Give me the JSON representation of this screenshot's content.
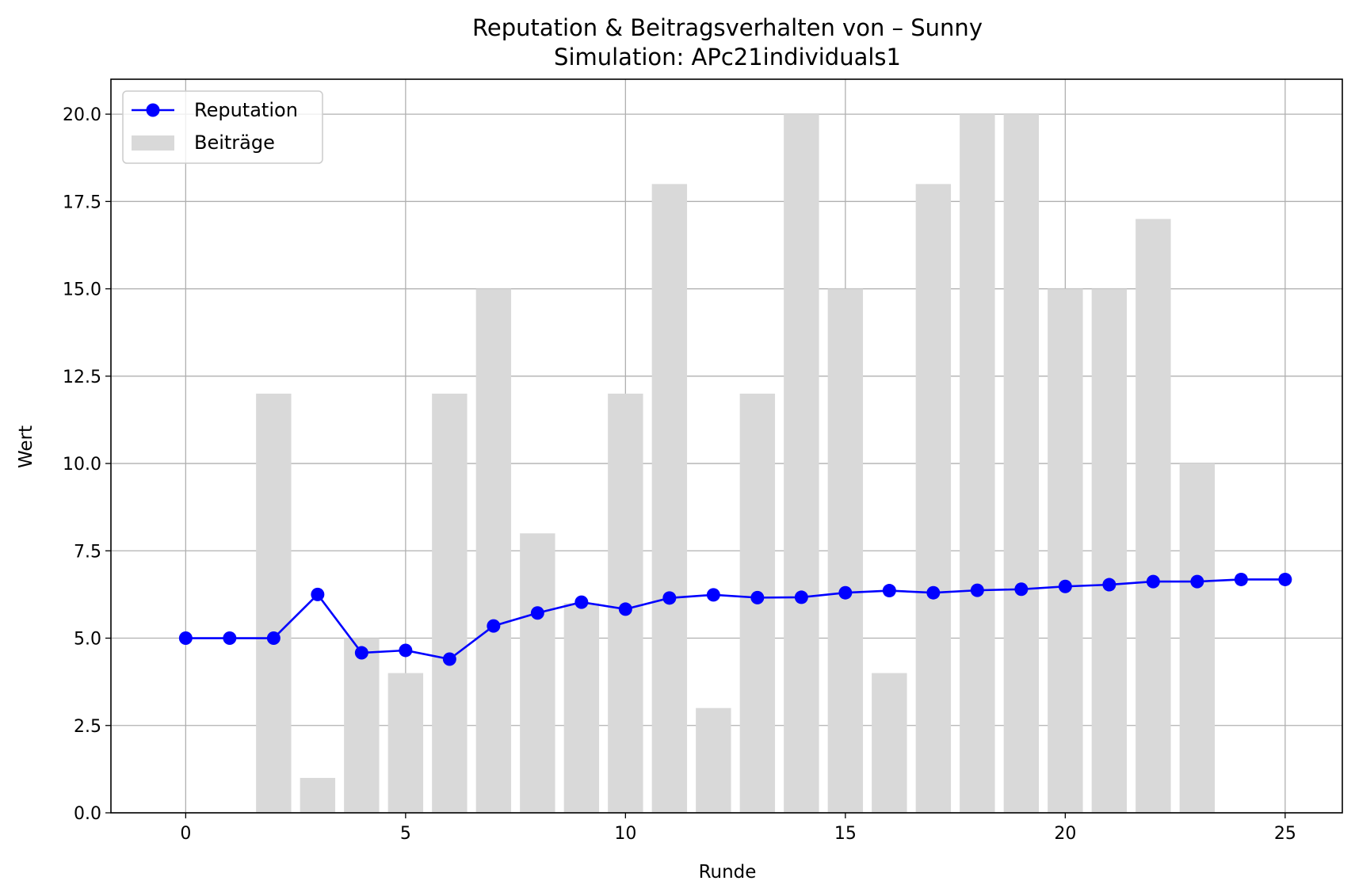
{
  "colors": {
    "reputation": "#0000ff",
    "contributions": "#d9d9d9",
    "grid": "#b0b0b0",
    "axes": "#000000",
    "legend_border": "#cccccc"
  },
  "chart_data": {
    "type": "bar",
    "title": "Reputation & Beitragsverhalten von – Sunny",
    "subtitle": "Simulation: APc21individuals1",
    "xlabel": "Runde",
    "ylabel": "Wert",
    "xlim": [
      -1.7,
      26.3
    ],
    "ylim": [
      0,
      21
    ],
    "xticks": [
      0,
      5,
      10,
      15,
      20,
      25
    ],
    "xtick_labels": [
      "0",
      "5",
      "10",
      "15",
      "20",
      "25"
    ],
    "yticks": [
      0,
      2.5,
      5,
      7.5,
      10,
      12.5,
      15,
      17.5,
      20
    ],
    "ytick_labels": [
      "0.0",
      "2.5",
      "5.0",
      "7.5",
      "10.0",
      "12.5",
      "15.0",
      "17.5",
      "20.0"
    ],
    "grid": true,
    "legend_position": "top-left",
    "series": [
      {
        "name": "Reputation",
        "type": "line",
        "marker": "circle",
        "x": [
          0,
          1,
          2,
          3,
          4,
          5,
          6,
          7,
          8,
          9,
          10,
          11,
          12,
          13,
          14,
          15,
          16,
          17,
          18,
          19,
          20,
          21,
          22,
          23,
          24,
          25
        ],
        "values": [
          5.0,
          5.0,
          5.0,
          6.25,
          4.58,
          4.65,
          4.4,
          5.35,
          5.72,
          6.03,
          5.83,
          6.15,
          6.24,
          6.16,
          6.17,
          6.3,
          6.36,
          6.3,
          6.37,
          6.4,
          6.48,
          6.53,
          6.62,
          6.62,
          6.68,
          6.68
        ]
      },
      {
        "name": "Beiträge",
        "type": "bar",
        "x": [
          2,
          3,
          4,
          5,
          6,
          7,
          8,
          9,
          10,
          11,
          12,
          13,
          14,
          15,
          16,
          17,
          18,
          19,
          20,
          21,
          22,
          23
        ],
        "values": [
          12,
          1,
          5,
          4,
          12,
          15,
          8,
          6,
          12,
          18,
          3,
          12,
          20,
          15,
          4,
          18,
          20,
          20,
          15,
          15,
          17,
          10
        ]
      }
    ]
  }
}
